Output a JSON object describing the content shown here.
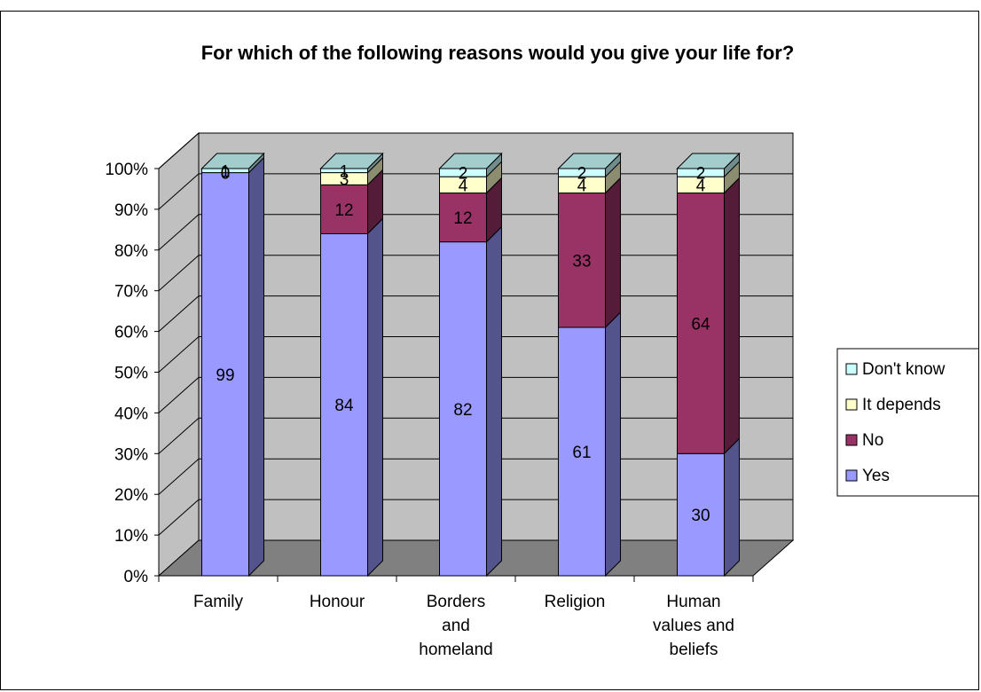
{
  "chart_data": {
    "type": "bar",
    "stacked": true,
    "three_d": true,
    "title": "For which of the following reasons would you give your life for?",
    "categories": [
      "Family",
      "Honour",
      "Borders and homeland",
      "Religion",
      "Human values and beliefs"
    ],
    "series": [
      {
        "name": "Yes",
        "values": [
          99,
          84,
          82,
          61,
          30
        ],
        "color": "#9999ff"
      },
      {
        "name": "No",
        "values": [
          0,
          12,
          12,
          33,
          64
        ],
        "color": "#993366"
      },
      {
        "name": "It depends",
        "values": [
          0,
          3,
          4,
          4,
          4
        ],
        "color": "#ffffcc"
      },
      {
        "name": "Don't know",
        "values": [
          1,
          1,
          2,
          2,
          2
        ],
        "color": "#ccffff"
      }
    ],
    "yticks": [
      "0%",
      "10%",
      "20%",
      "30%",
      "40%",
      "50%",
      "60%",
      "70%",
      "80%",
      "90%",
      "100%"
    ],
    "ylim": [
      0,
      100
    ],
    "grid": true,
    "legend": "right"
  }
}
